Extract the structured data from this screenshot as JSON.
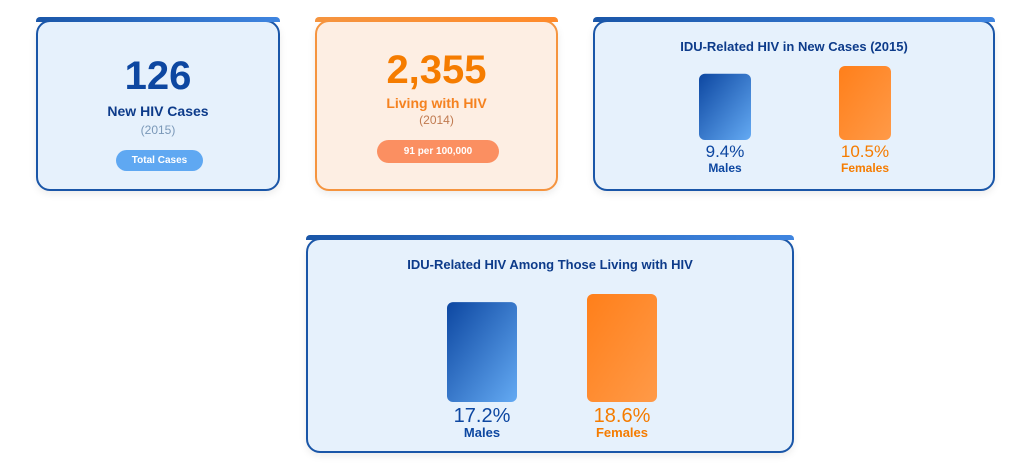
{
  "cards": {
    "new_cases": {
      "value": "126",
      "label": "New HIV Cases",
      "year": "(2015)",
      "pill": "Total Cases"
    },
    "living": {
      "value": "2,355",
      "label": "Living with HIV",
      "year": "(2014)",
      "pill": "91 per 100,000"
    }
  },
  "chart_data": [
    {
      "type": "bar",
      "title": "IDU-Related HIV in New Cases (2015)",
      "categories": [
        "Males",
        "Females"
      ],
      "values": [
        9.4,
        10.5
      ],
      "value_labels": [
        "9.4%",
        "10.5%"
      ],
      "colors": [
        "#1a56b8",
        "#ff8a2a"
      ],
      "ylim": [
        0,
        10.5
      ]
    },
    {
      "type": "bar",
      "title": "IDU-Related HIV Among Those Living with HIV",
      "categories": [
        "Males",
        "Females"
      ],
      "values": [
        17.2,
        18.6
      ],
      "value_labels": [
        "17.2%",
        "18.6%"
      ],
      "colors": [
        "#1a56b8",
        "#ff8a2a"
      ],
      "ylim": [
        0,
        18.6
      ]
    }
  ]
}
